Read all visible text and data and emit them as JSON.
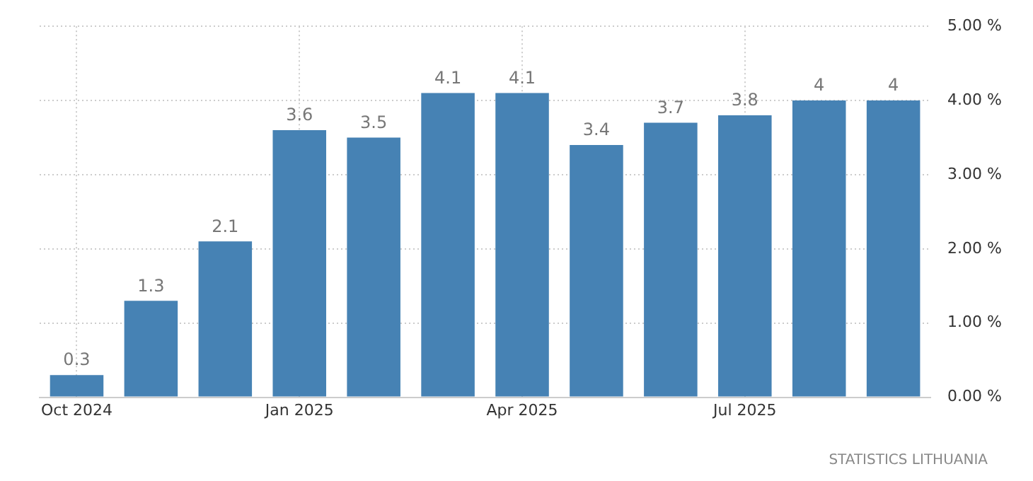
{
  "chart_data": {
    "type": "bar",
    "categories": [
      "Oct 2024",
      null,
      null,
      "Jan 2025",
      null,
      null,
      "Apr 2025",
      null,
      null,
      "Jul 2025",
      null,
      null
    ],
    "values": [
      0.3,
      1.3,
      2.1,
      3.6,
      3.5,
      4.1,
      4.1,
      3.4,
      3.7,
      3.8,
      4,
      4
    ],
    "color": "#4682b4",
    "ylim": [
      0,
      5
    ],
    "yticks": [
      {
        "value": 0,
        "label": "0.00 %"
      },
      {
        "value": 1,
        "label": "1.00 %"
      },
      {
        "value": 2,
        "label": "2.00 %"
      },
      {
        "value": 3,
        "label": "3.00 %"
      },
      {
        "value": 4,
        "label": "4.00 %"
      },
      {
        "value": 5,
        "label": "5.00 %"
      }
    ],
    "grid": true,
    "data_labels": true,
    "annotations": [
      "STATISTICS LITHUANIA"
    ]
  }
}
